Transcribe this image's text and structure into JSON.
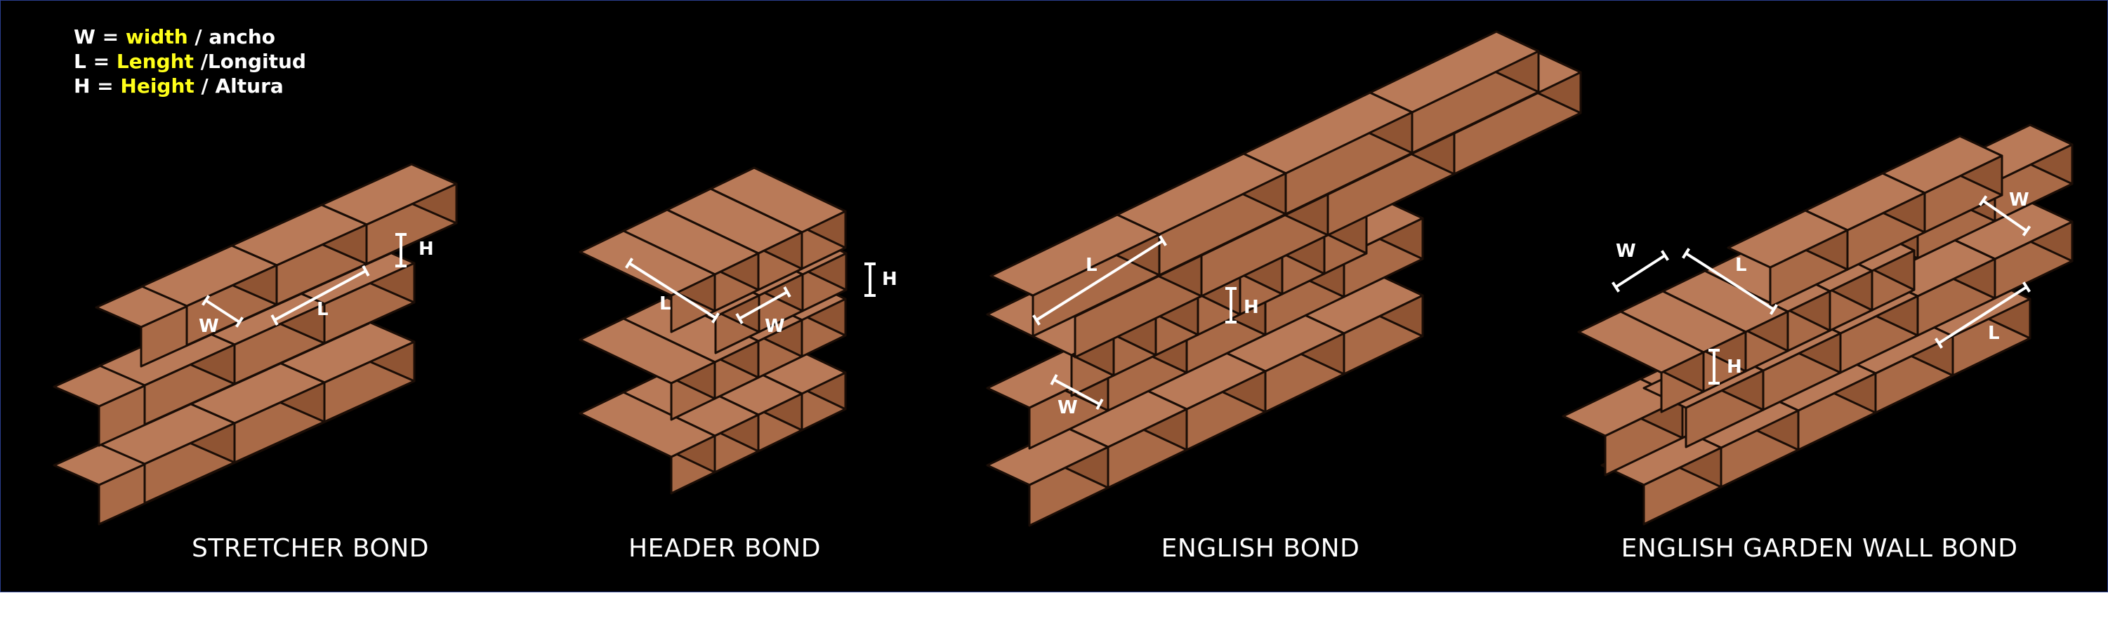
{
  "legend": [
    {
      "key": "W = ",
      "term": "width",
      "rest": " / ancho"
    },
    {
      "key": "L = ",
      "term": "Lenght",
      "rest": " /Longitud"
    },
    {
      "key": "H = ",
      "term": "Height",
      "rest": " / Altura"
    }
  ],
  "captions": {
    "stretcher": "STRETCHER BOND",
    "header": "HEADER BOND",
    "english": "ENGLISH BOND",
    "garden": "ENGLISH GARDEN WALL BOND"
  },
  "dimension_labels": {
    "w": "W",
    "l": "L",
    "h": "H"
  },
  "colors": {
    "background": "#000000",
    "brick_top": "#b97a58",
    "brick_left": "#a96a47",
    "brick_right": "#8f5433",
    "outline": "#1a0d06",
    "legend_highlight": "#ffff1a",
    "dimension_line": "#ffffff"
  }
}
